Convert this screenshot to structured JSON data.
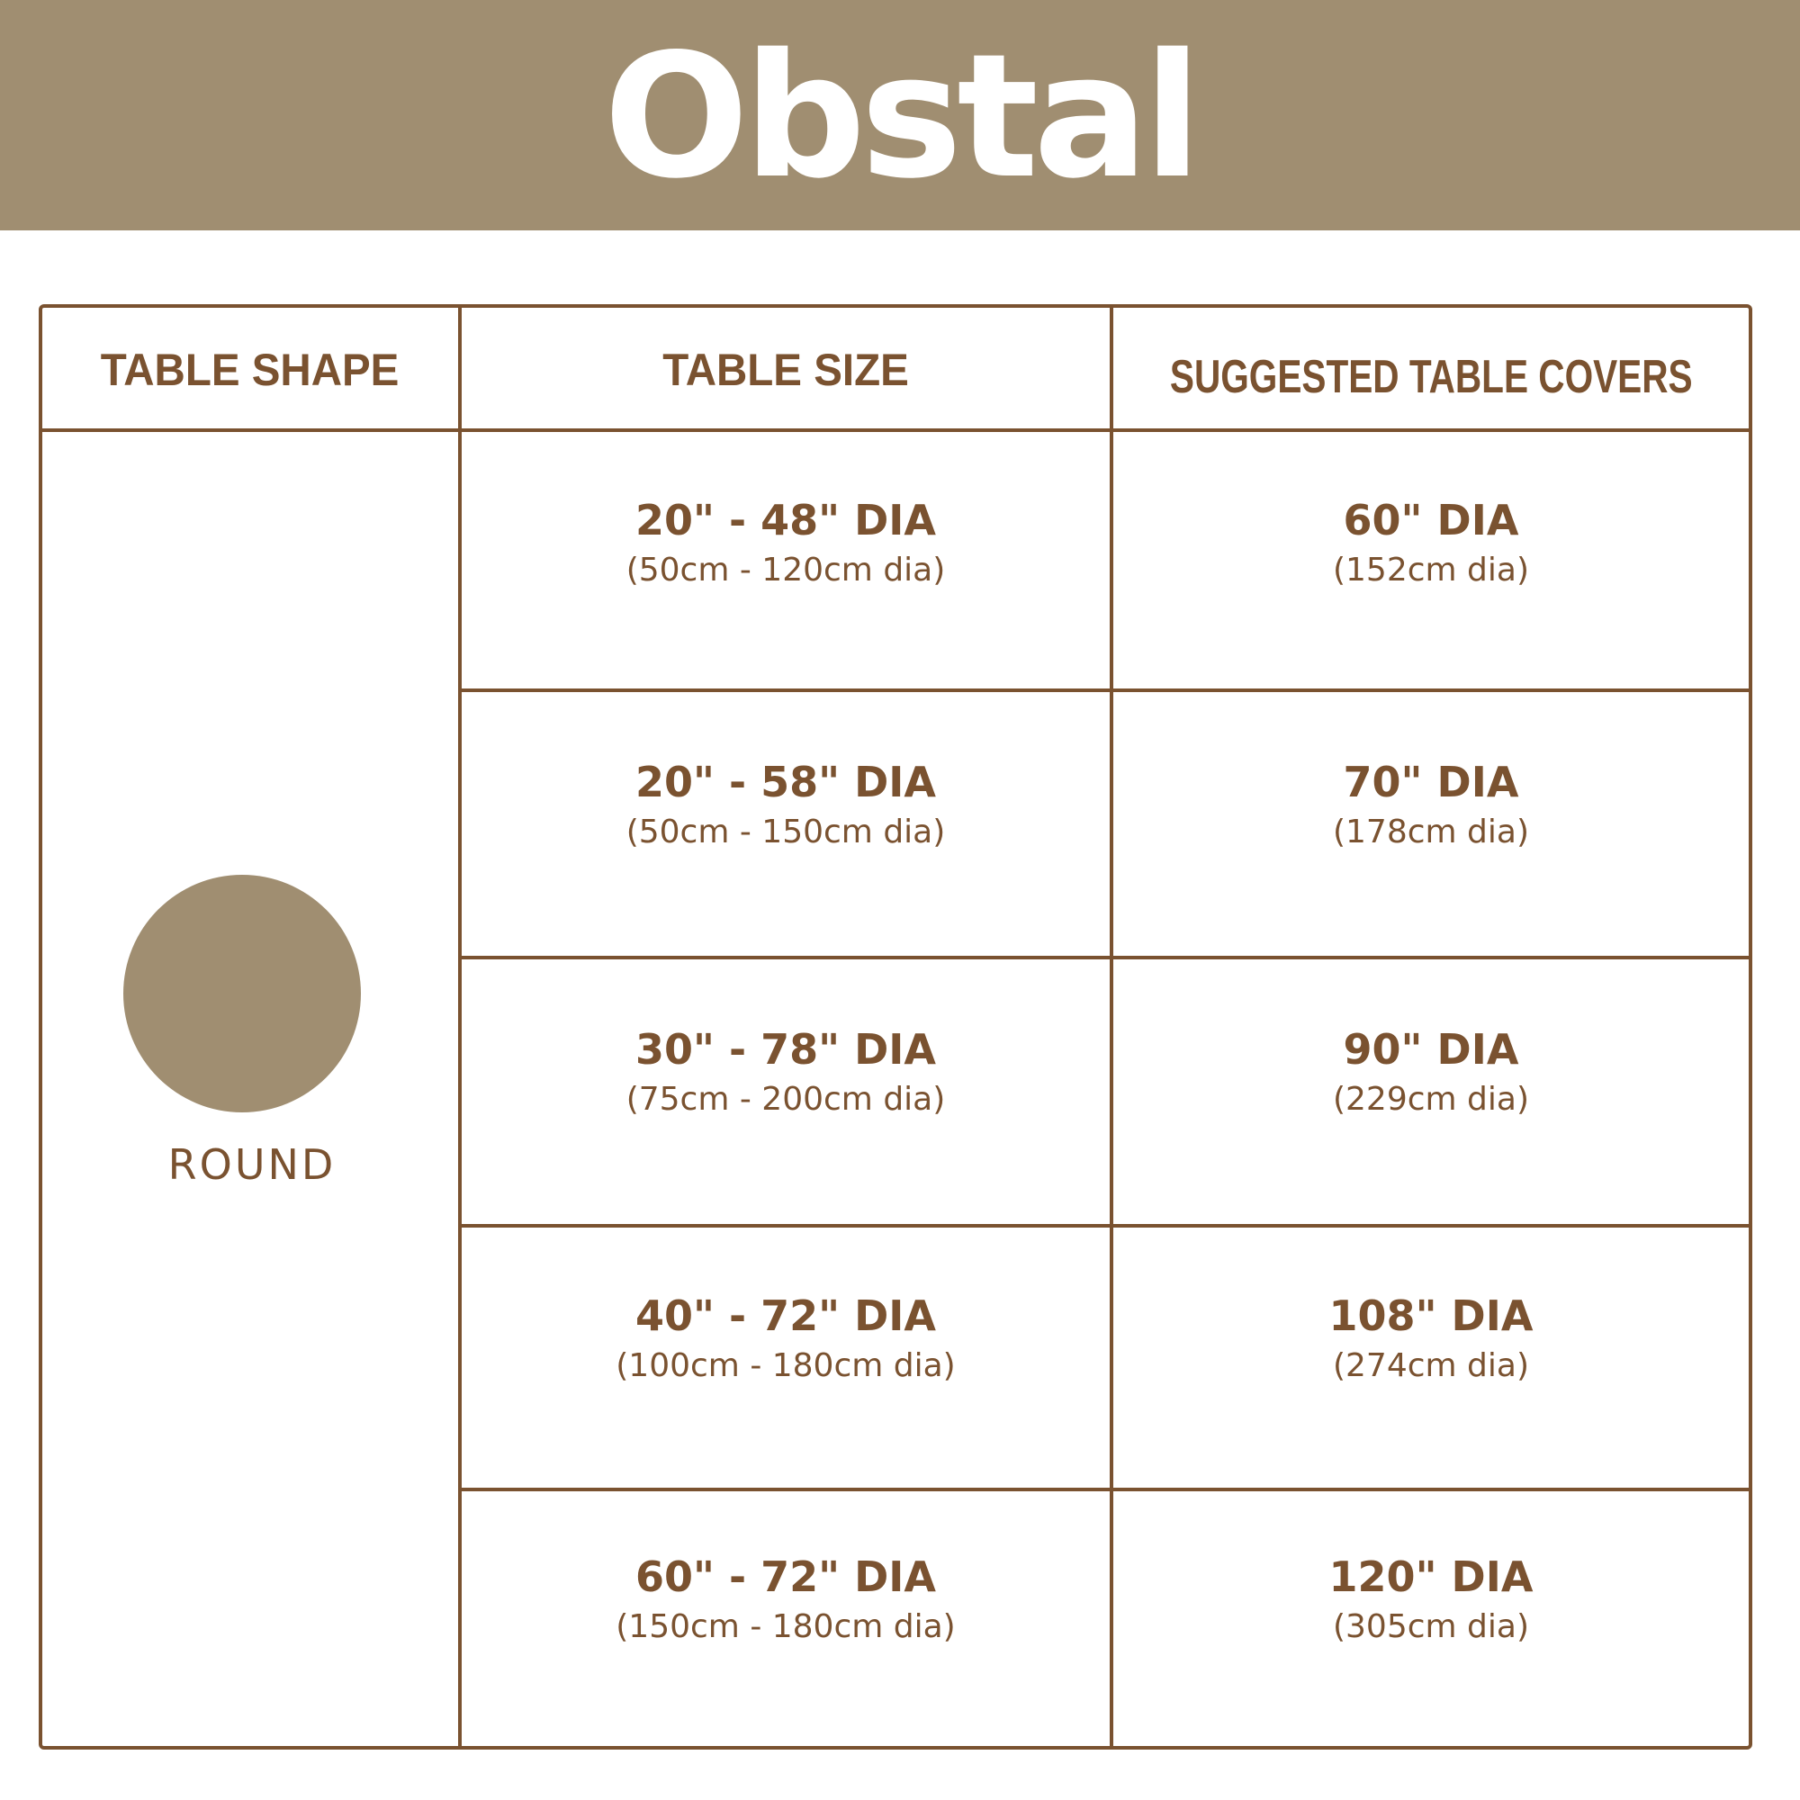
{
  "brand": {
    "logo_text": "Obstal",
    "band_color": "#a08e71",
    "text_color": "#7a5230"
  },
  "table": {
    "headers": [
      "TABLE SHAPE",
      "TABLE SIZE",
      "SUGGESTED TABLE COVERS"
    ],
    "shape": {
      "label": "ROUND",
      "icon": "circle"
    },
    "rows": [
      {
        "size": "20\" - 48\" DIA",
        "size_metric": "(50cm - 120cm dia)",
        "cover": "60\" DIA",
        "cover_metric": "(152cm dia)"
      },
      {
        "size": "20\" - 58\" DIA",
        "size_metric": "(50cm - 150cm dia)",
        "cover": "70\" DIA",
        "cover_metric": "(178cm dia)"
      },
      {
        "size": "30\" - 78\" DIA",
        "size_metric": "(75cm - 200cm dia)",
        "cover": "90\" DIA",
        "cover_metric": "(229cm dia)"
      },
      {
        "size": "40\" - 72\" DIA",
        "size_metric": "(100cm - 180cm dia)",
        "cover": "108\" DIA",
        "cover_metric": "(274cm dia)"
      },
      {
        "size": "60\" - 72\" DIA",
        "size_metric": "(150cm - 180cm dia)",
        "cover": "120\" DIA",
        "cover_metric": "(305cm dia)"
      }
    ]
  }
}
